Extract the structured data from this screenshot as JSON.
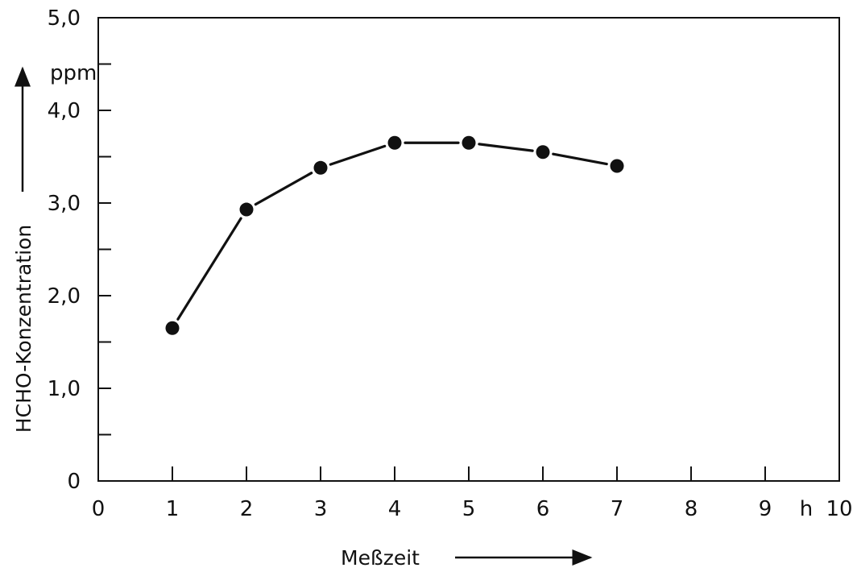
{
  "chart_data": {
    "type": "line",
    "title": "",
    "xlabel": "Meßzeit",
    "ylabel": "HCHO-Konzentration",
    "x_unit": "h",
    "y_unit": "ppm",
    "xlim": [
      0,
      10
    ],
    "ylim": [
      0,
      5.0
    ],
    "x_ticks": [
      "0",
      "1",
      "2",
      "3",
      "4",
      "5",
      "6",
      "7",
      "8",
      "9",
      "10"
    ],
    "y_ticks": [
      "0",
      "1,0",
      "2,0",
      "3,0",
      "4,0",
      "5,0"
    ],
    "grid": false,
    "series": [
      {
        "x": [
          1,
          2,
          3,
          4,
          5,
          6,
          7
        ],
        "y": [
          1.65,
          2.93,
          3.38,
          3.65,
          3.65,
          3.55,
          3.4
        ]
      }
    ]
  }
}
